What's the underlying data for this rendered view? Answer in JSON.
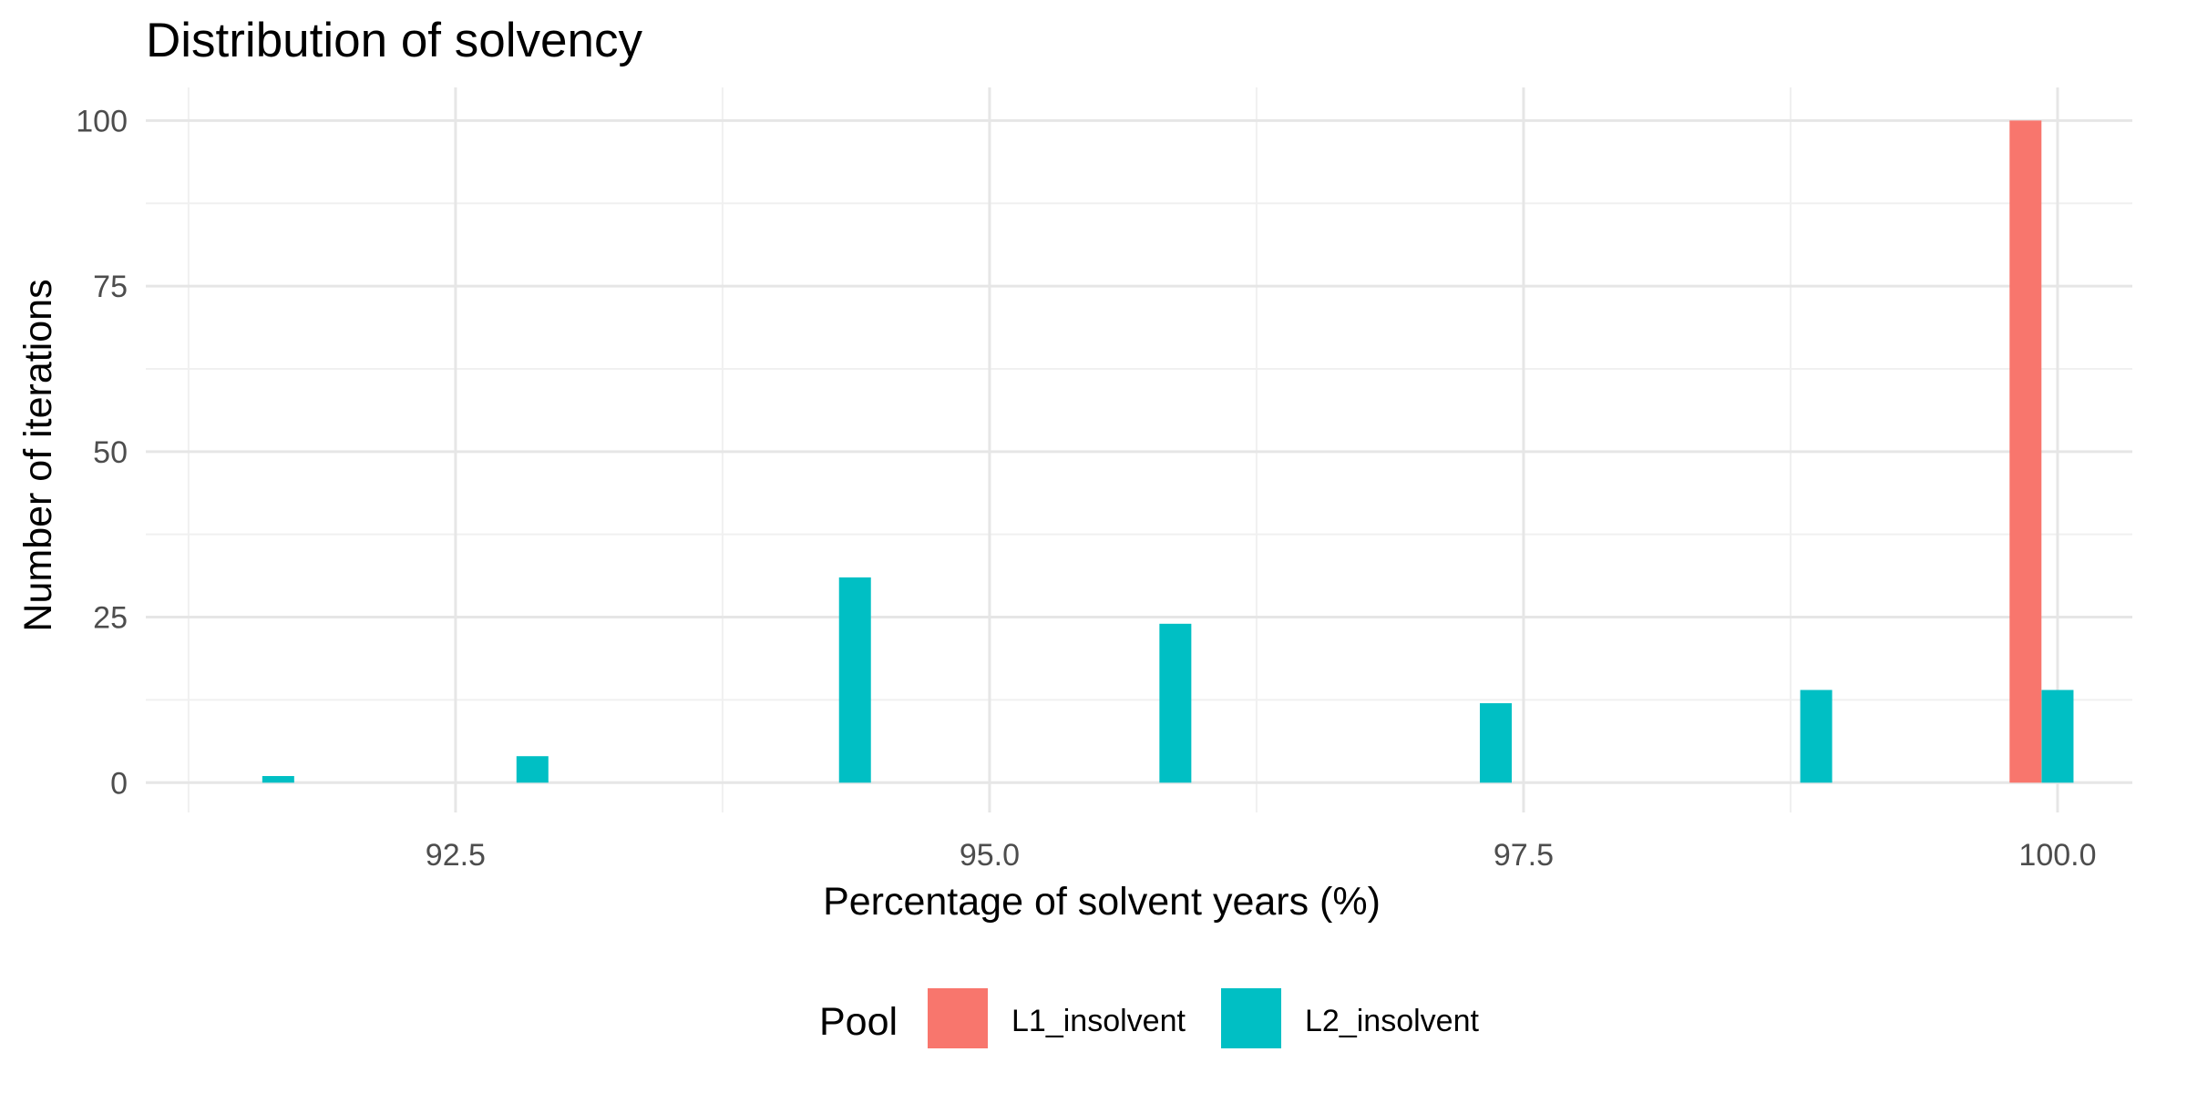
{
  "chart_data": {
    "type": "bar",
    "title": "Distribution of solvency",
    "xlabel": "Percentage of solvent years (%)",
    "ylabel": "Number of iterations",
    "xlim": [
      91.05,
      100.35
    ],
    "ylim": [
      -4.5,
      105
    ],
    "x_ticks": [
      "92.5",
      "95.0",
      "97.5",
      "100.0"
    ],
    "y_ticks": [
      "0",
      "25",
      "50",
      "75",
      "100"
    ],
    "grid": true,
    "legend": {
      "title": "Pool",
      "position": "bottom",
      "entries": [
        "L1_insolvent",
        "L2_insolvent"
      ]
    },
    "series": [
      {
        "name": "L1_insolvent",
        "color": "#F8766D",
        "points": [
          {
            "x": 99.85,
            "y": 100
          }
        ]
      },
      {
        "name": "L2_insolvent",
        "color": "#00BFC4",
        "points": [
          {
            "x": 91.67,
            "y": 1
          },
          {
            "x": 92.86,
            "y": 4
          },
          {
            "x": 94.37,
            "y": 31
          },
          {
            "x": 95.87,
            "y": 24
          },
          {
            "x": 97.37,
            "y": 12
          },
          {
            "x": 98.87,
            "y": 14
          },
          {
            "x": 100.0,
            "y": 14
          }
        ]
      }
    ]
  }
}
